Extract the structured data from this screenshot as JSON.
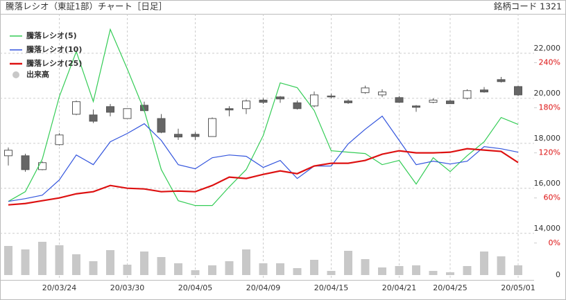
{
  "chart_data": {
    "type": "candlestick",
    "title": "騰落レシオ（東証1部）チャート［日足］",
    "code_label": "銘柄コード 1321",
    "categories": [
      null,
      null,
      null,
      "20/03/24",
      null,
      null,
      null,
      "20/03/30",
      null,
      null,
      null,
      "20/04/05",
      null,
      null,
      null,
      "20/04/09",
      null,
      null,
      null,
      "20/04/15",
      null,
      null,
      null,
      "20/04/21",
      null,
      null,
      "20/04/25",
      null,
      null,
      null,
      "20/05/01"
    ],
    "candles": {
      "open": [
        17446,
        17446,
        16830,
        17940,
        19290,
        19260,
        19630,
        19100,
        19690,
        19100,
        18400,
        18400,
        18300,
        19540,
        19540,
        19920,
        20060,
        19800,
        19660,
        20100,
        19880,
        20250,
        20150,
        20030,
        19660,
        19820,
        19880,
        20000,
        20370,
        20830,
        20520
      ],
      "close": [
        17692,
        16830,
        17140,
        18370,
        19850,
        18980,
        19380,
        19540,
        19450,
        18490,
        18280,
        18300,
        19100,
        19480,
        19880,
        19820,
        19970,
        19540,
        20150,
        20060,
        19800,
        20460,
        20280,
        19820,
        19600,
        19920,
        19760,
        20340,
        20280,
        20740,
        20150
      ],
      "high": [
        17815,
        17538,
        17200,
        18450,
        19900,
        19500,
        19750,
        19550,
        19850,
        19300,
        18650,
        18500,
        19150,
        19650,
        19950,
        20000,
        20100,
        19900,
        20300,
        20200,
        19950,
        20560,
        20400,
        20100,
        19700,
        20000,
        19950,
        20400,
        20500,
        20950,
        20550
      ],
      "low": [
        17015,
        16738,
        16800,
        17900,
        19250,
        18900,
        19200,
        19100,
        19400,
        18450,
        18150,
        18150,
        18300,
        19200,
        19300,
        19750,
        19800,
        19500,
        19600,
        20000,
        19750,
        20200,
        20050,
        19800,
        19400,
        19780,
        19750,
        19950,
        20250,
        20700,
        20100
      ]
    },
    "series": [
      {
        "name": "騰落レシオ(5)",
        "color": "#33cc55",
        "axis": "y2",
        "values": [
          55.4,
          68.3,
          111.7,
          194.8,
          254.8,
          188.3,
          284.3,
          231.7,
          176.3,
          97.8,
          56.3,
          49.9,
          49.9,
          74.8,
          97.8,
          143.1,
          213.2,
          206.8,
          176.3,
          122.8,
          120.9,
          119.1,
          104.3,
          109.9,
          78.5,
          113.5,
          95.1,
          116.3,
          134.8,
          167.1,
          157.9
        ]
      },
      {
        "name": "騰落レシオ(10)",
        "color": "#3355dd",
        "axis": "y2",
        "values": [
          55.4,
          59.1,
          63.7,
          84.0,
          117.2,
          104.3,
          134.8,
          145.8,
          158.8,
          136.6,
          104.3,
          98.8,
          113.5,
          117.2,
          115.4,
          100.6,
          109.9,
          85.9,
          102.5,
          102.5,
          132.0,
          151.4,
          168.9,
          136.6,
          104.3,
          108.9,
          105.2,
          108.9,
          128.3,
          125.5,
          120.9
        ]
      },
      {
        "name": "騰落レシオ(25)",
        "color": "#dd1111",
        "axis": "y2",
        "values": [
          50.8,
          52.6,
          56.3,
          60.0,
          65.5,
          68.3,
          76.6,
          72.9,
          72.0,
          68.3,
          69.2,
          68.3,
          76.6,
          87.7,
          85.9,
          91.4,
          96.0,
          92.3,
          102.5,
          106.2,
          106.2,
          109.9,
          118.2,
          122.8,
          120.0,
          120.0,
          120.9,
          125.5,
          123.7,
          121.9,
          107.1
        ]
      }
    ],
    "volume": {
      "name": "出来高",
      "color": "#c8c8c8",
      "values": [
        42,
        37,
        48,
        43,
        30,
        20,
        36,
        15,
        34,
        26,
        17,
        7,
        14,
        20,
        37,
        17,
        17,
        10,
        22,
        6,
        35,
        23,
        11,
        13,
        14,
        6,
        4,
        13,
        34,
        27,
        14
      ],
      "vlim": [
        0,
        50
      ],
      "vticks": [
        0
      ]
    },
    "ylim": [
      11900,
      23750
    ],
    "yticks": [
      {
        "value": 14000,
        "label": "14,000"
      },
      {
        "value": 16000,
        "label": "16,000"
      },
      {
        "value": 18000,
        "label": "18,000"
      },
      {
        "value": 20000,
        "label": "20,000"
      },
      {
        "value": 22000,
        "label": "22,000"
      }
    ],
    "y2lim": [
      -50,
      305
    ],
    "y2ticks": [
      {
        "value": 0,
        "label": "0%"
      },
      {
        "value": 60,
        "label": "60%"
      },
      {
        "value": 120,
        "label": "120%"
      },
      {
        "value": 180,
        "label": "180%"
      },
      {
        "value": 240,
        "label": "240%"
      }
    ],
    "grid": true
  }
}
